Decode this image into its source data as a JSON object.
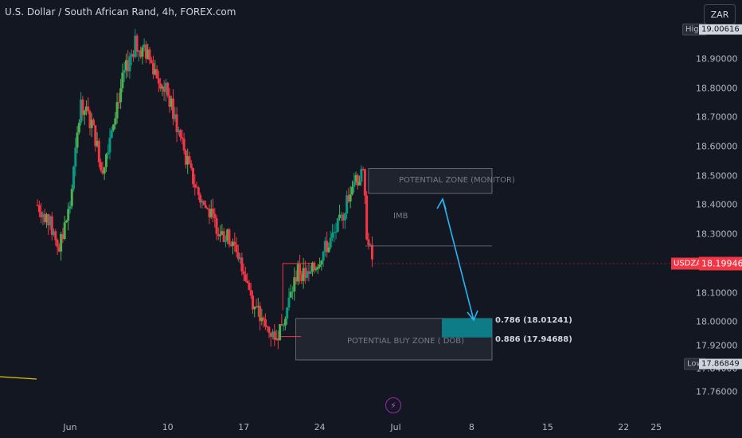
{
  "header": {
    "title": "U.S. Dollar / South African Rand, 4h, FOREX.com",
    "currency_button": "ZAR"
  },
  "chart_data": {
    "type": "candlestick",
    "symbol": "USDZAR",
    "y_ticks": [
      "18.90000",
      "18.80000",
      "18.70000",
      "18.60000",
      "18.50000",
      "18.40000",
      "18.30000",
      "18.10000",
      "18.00000",
      "17.92000",
      "17.84000",
      "17.76000"
    ],
    "y_tick_values": [
      18.9,
      18.8,
      18.7,
      18.6,
      18.5,
      18.4,
      18.3,
      18.1,
      18.0,
      17.92,
      17.84,
      17.76
    ],
    "x_ticks": [
      "Jun",
      "10",
      "17",
      "24",
      "Jul",
      "8",
      "15",
      "22",
      "25"
    ],
    "x_tick_days": [
      0,
      9,
      16,
      23,
      30,
      37,
      44,
      51,
      54
    ],
    "x_range": [
      -3,
      56
    ],
    "tags": {
      "high": {
        "name": "High",
        "value": "19.00616"
      },
      "last": {
        "name": "USDZAR",
        "value": "18.19946"
      },
      "low": {
        "name": "Low",
        "value": "17.86849"
      }
    },
    "path": [
      [
        -3,
        18.4
      ],
      [
        -2,
        18.35
      ],
      [
        -1,
        18.25
      ],
      [
        0,
        18.4
      ],
      [
        1,
        18.75
      ],
      [
        2,
        18.68
      ],
      [
        3,
        18.52
      ],
      [
        4,
        18.7
      ],
      [
        5,
        18.85
      ],
      [
        6,
        18.95
      ],
      [
        7,
        18.92
      ],
      [
        8,
        18.85
      ],
      [
        9,
        18.78
      ],
      [
        10,
        18.65
      ],
      [
        11,
        18.52
      ],
      [
        12,
        18.42
      ],
      [
        13,
        18.36
      ],
      [
        14,
        18.3
      ],
      [
        15,
        18.28
      ],
      [
        16,
        18.18
      ],
      [
        17,
        18.05
      ],
      [
        18,
        17.98
      ],
      [
        19,
        17.95
      ],
      [
        20,
        18.05
      ],
      [
        21,
        18.18
      ],
      [
        22,
        18.15
      ],
      [
        23,
        18.22
      ],
      [
        24,
        18.28
      ],
      [
        25,
        18.35
      ],
      [
        26,
        18.48
      ],
      [
        27,
        18.5
      ],
      [
        27.4,
        18.27
      ],
      [
        28,
        18.2
      ]
    ],
    "zones": {
      "monitor": {
        "label": "POTENTIAL ZONE (MONITOR)",
        "top": 18.525,
        "bottom": 18.44
      },
      "imb_label": "IMB",
      "imb_line": 18.26,
      "buy": {
        "label": "POTENTIAL BUY ZONE ( DOB)",
        "top": 18.012,
        "bottom": 17.87
      },
      "fib": [
        {
          "label": "0.786 (18.01241)",
          "value": 18.01241
        },
        {
          "label": "0.886 (17.94688)",
          "value": 17.94688
        }
      ]
    }
  },
  "colors": {
    "up": "#089981",
    "up_alt": "#4caf50",
    "down": "#f23645",
    "bg": "#131722",
    "zone_fill": "#2a2e39",
    "arrow": "#29b6f6",
    "target_fill": "#0e7c86"
  }
}
